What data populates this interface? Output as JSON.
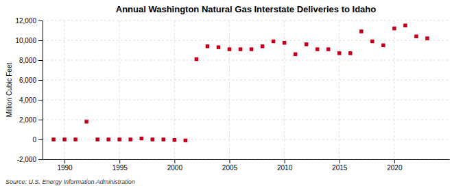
{
  "chart_data": {
    "type": "scatter",
    "title": "Annual Washington Natural Gas Interstate Deliveries to Idaho",
    "ylabel": "Million Cubic Feet",
    "annotations": [
      "Source: U.S. Energy Information Administration"
    ],
    "x": [
      1989,
      1990,
      1991,
      1992,
      1993,
      1994,
      1995,
      1996,
      1997,
      1998,
      1999,
      2000,
      2001,
      2002,
      2003,
      2004,
      2005,
      2006,
      2007,
      2008,
      2009,
      2010,
      2011,
      2012,
      2013,
      2014,
      2015,
      2016,
      2017,
      2018,
      2019,
      2020,
      2021,
      2022,
      2023
    ],
    "values": [
      0,
      0,
      0,
      1800,
      0,
      0,
      0,
      0,
      100,
      0,
      0,
      -50,
      -100,
      8100,
      9400,
      9300,
      9100,
      9100,
      9100,
      9400,
      9900,
      9750,
      8600,
      9600,
      9100,
      9100,
      8700,
      8700,
      10900,
      9900,
      9500,
      11200,
      11500,
      10400,
      10200
    ],
    "color": "#c0001a",
    "marker": "square",
    "xlim": [
      1988,
      2025
    ],
    "xticks": [
      1990,
      1995,
      2000,
      2005,
      2010,
      2015,
      2020
    ],
    "ylim": [
      -2000,
      12000
    ],
    "yticks": [
      {
        "value": -2000,
        "label": "-2,000"
      },
      0,
      {
        "value": 2000,
        "label": "2,000"
      },
      {
        "value": 4000,
        "label": "4,000"
      },
      {
        "value": 6000,
        "label": "6,000"
      },
      {
        "value": 8000,
        "label": "8,000"
      },
      {
        "value": 10000,
        "label": "10,000"
      },
      {
        "value": 12000,
        "label": "12,000"
      }
    ],
    "grid": true
  }
}
